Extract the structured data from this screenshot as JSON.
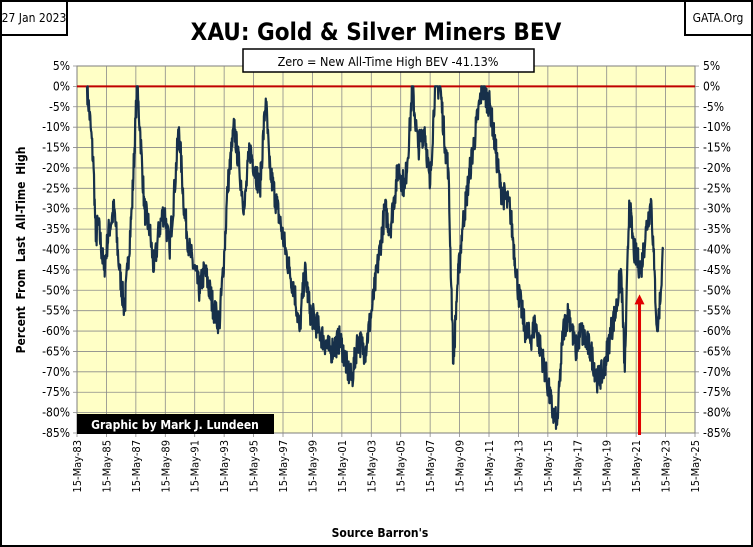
{
  "chart_data": {
    "type": "line",
    "title": "XAU: Gold & Silver Miners BEV",
    "date_label": "27 Jan 2023",
    "source_site": "GATA.Org",
    "annotation": "Zero = New All-Time High BEV -41.13%",
    "credit": "Graphic by Mark J. Lundeen",
    "xlabel": "Source Barron's",
    "ylabel": "Percent From Last All-Time High",
    "ylim": [
      -85,
      5
    ],
    "yticks": [
      "5%",
      "0%",
      "-5%",
      "-10%",
      "-15%",
      "-20%",
      "-25%",
      "-30%",
      "-35%",
      "-40%",
      "-45%",
      "-50%",
      "-55%",
      "-60%",
      "-65%",
      "-70%",
      "-75%",
      "-80%",
      "-85%"
    ],
    "xlim": [
      1983.37,
      2025.37
    ],
    "xticks": [
      "15-May-83",
      "15-May-85",
      "15-May-87",
      "15-May-89",
      "15-May-91",
      "15-May-93",
      "15-May-95",
      "15-May-97",
      "15-May-99",
      "15-May-01",
      "15-May-03",
      "15-May-05",
      "15-May-07",
      "15-May-09",
      "15-May-11",
      "15-May-13",
      "15-May-15",
      "15-May-17",
      "15-May-19",
      "15-May-21",
      "15-May-23",
      "15-May-25"
    ],
    "grid": true,
    "zero_line_color": "#c00000",
    "series_color": "#17304a",
    "arrow": {
      "x": 2021.6,
      "from": -85,
      "to": -51,
      "color": "#e00000"
    },
    "series": [
      {
        "name": "XAU BEV",
        "points": [
          [
            1984.05,
            0
          ],
          [
            1984.3,
            -10
          ],
          [
            1984.5,
            -20
          ],
          [
            1984.65,
            -38
          ],
          [
            1984.8,
            -33
          ],
          [
            1985.2,
            -45
          ],
          [
            1985.55,
            -35
          ],
          [
            1985.9,
            -30
          ],
          [
            1986.25,
            -45
          ],
          [
            1986.6,
            -55
          ],
          [
            1986.8,
            -45
          ],
          [
            1987.1,
            -30
          ],
          [
            1987.45,
            0
          ],
          [
            1987.65,
            -10
          ],
          [
            1987.95,
            -30
          ],
          [
            1988.3,
            -35
          ],
          [
            1988.6,
            -45
          ],
          [
            1988.95,
            -35
          ],
          [
            1989.3,
            -30
          ],
          [
            1989.65,
            -40
          ],
          [
            1990.0,
            -25
          ],
          [
            1990.3,
            -10
          ],
          [
            1990.65,
            -30
          ],
          [
            1991.0,
            -40
          ],
          [
            1991.7,
            -50
          ],
          [
            1992.05,
            -45
          ],
          [
            1992.7,
            -55
          ],
          [
            1993.05,
            -58
          ],
          [
            1993.4,
            -40
          ],
          [
            1993.6,
            -25
          ],
          [
            1994.05,
            -10
          ],
          [
            1994.4,
            -20
          ],
          [
            1994.75,
            -30
          ],
          [
            1995.1,
            -15
          ],
          [
            1995.45,
            -20
          ],
          [
            1995.8,
            -25
          ],
          [
            1996.2,
            -3
          ],
          [
            1996.45,
            -20
          ],
          [
            1997.0,
            -30
          ],
          [
            1997.8,
            -45
          ],
          [
            1998.15,
            -50
          ],
          [
            1998.5,
            -60
          ],
          [
            1998.85,
            -45
          ],
          [
            1999.2,
            -55
          ],
          [
            1999.85,
            -60
          ],
          [
            2000.55,
            -65
          ],
          [
            2001.25,
            -62
          ],
          [
            2001.8,
            -70
          ],
          [
            2002.05,
            -72
          ],
          [
            2002.45,
            -62
          ],
          [
            2002.95,
            -65
          ],
          [
            2003.4,
            -55
          ],
          [
            2003.95,
            -40
          ],
          [
            2004.3,
            -30
          ],
          [
            2004.65,
            -35
          ],
          [
            2005.2,
            -20
          ],
          [
            2005.65,
            -25
          ],
          [
            2006.0,
            -10
          ],
          [
            2006.15,
            0
          ],
          [
            2006.55,
            -15
          ],
          [
            2007.0,
            -10
          ],
          [
            2007.35,
            -25
          ],
          [
            2007.7,
            0
          ],
          [
            2008.05,
            0
          ],
          [
            2008.4,
            -15
          ],
          [
            2008.6,
            -20
          ],
          [
            2008.95,
            -68
          ],
          [
            2009.2,
            -50
          ],
          [
            2009.55,
            -35
          ],
          [
            2010.1,
            -20
          ],
          [
            2010.9,
            0
          ],
          [
            2011.45,
            -5
          ],
          [
            2011.8,
            -15
          ],
          [
            2012.15,
            -25
          ],
          [
            2012.8,
            -30
          ],
          [
            2013.35,
            -50
          ],
          [
            2013.85,
            -60
          ],
          [
            2014.2,
            -62
          ],
          [
            2014.5,
            -58
          ],
          [
            2015.2,
            -70
          ],
          [
            2015.7,
            -80
          ],
          [
            2016.0,
            -83
          ],
          [
            2016.4,
            -60
          ],
          [
            2016.8,
            -55
          ],
          [
            2017.25,
            -65
          ],
          [
            2017.6,
            -60
          ],
          [
            2018.3,
            -65
          ],
          [
            2018.75,
            -72
          ],
          [
            2019.15,
            -70
          ],
          [
            2019.65,
            -60
          ],
          [
            2020.0,
            -55
          ],
          [
            2020.35,
            -45
          ],
          [
            2020.6,
            -70
          ],
          [
            2020.9,
            -28
          ],
          [
            2021.2,
            -40
          ],
          [
            2021.7,
            -45
          ],
          [
            2022.05,
            -35
          ],
          [
            2022.4,
            -28
          ],
          [
            2022.6,
            -45
          ],
          [
            2022.8,
            -60
          ],
          [
            2023.05,
            -50
          ],
          [
            2023.2,
            -40
          ]
        ]
      }
    ]
  }
}
